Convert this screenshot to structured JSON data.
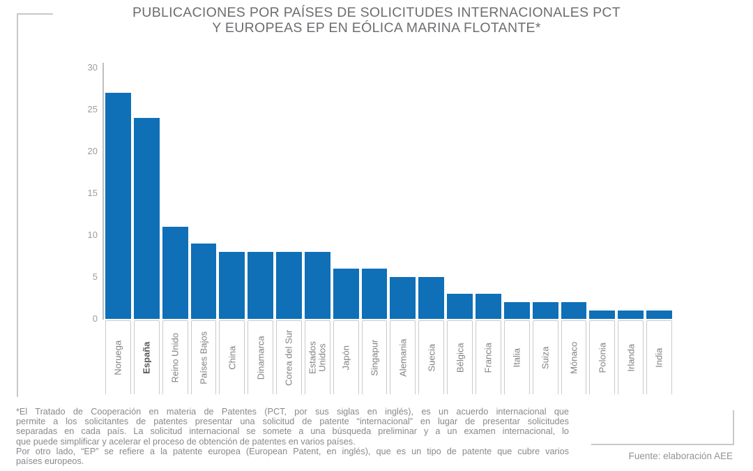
{
  "title": {
    "line1": "PUBLICACIONES POR PAÍSES DE SOLICITUDES INTERNACIONALES PCT",
    "line2": "Y EUROPEAS EP EN EÓLICA MARINA FLOTANTE*"
  },
  "chart_data": {
    "type": "bar",
    "title": "PUBLICACIONES POR PAÍSES DE SOLICITUDES INTERNACIONALES PCT Y EUROPEAS EP EN EÓLICA MARINA FLOTANTE*",
    "categories": [
      "Noruega",
      "España",
      "Reino Unido",
      "Países Bajos",
      "China",
      "Dinamarca",
      "Corea del Sur",
      "Estados\nUnidos",
      "Japón",
      "Singapur",
      "Alemania",
      "Suecia",
      "Bélgica",
      "Francia",
      "Italia",
      "Suiza",
      "Mónaco",
      "Polonia",
      "Irlanda",
      "India"
    ],
    "values": [
      27,
      24,
      11,
      9,
      8,
      8,
      8,
      8,
      6,
      6,
      5,
      5,
      3,
      3,
      2,
      2,
      2,
      1,
      1,
      1
    ],
    "ylim": [
      0,
      30
    ],
    "yticks": [
      0,
      5,
      10,
      15,
      20,
      25,
      30
    ],
    "grid": false,
    "legend_position": "none",
    "bar_color": "#0f6fb7",
    "bold_category": "España"
  },
  "footnote": {
    "lines": [
      "*El Tratado de Cooperación en materia de Patentes (PCT, por sus siglas en inglés), es un acuerdo internacional que",
      "permite a los solicitantes de patentes presentar una solicitud de patente “internacional” en lugar de presentar solicitudes",
      "separadas en cada país. La solicitud internacional se somete a una búsqueda preliminar y a un examen internacional, lo",
      "que puede simplificar y acelerar el proceso de obtención de patentes en varios países.",
      "Por otro lado, “EP” se refiere a la patente europea (European Patent, en inglés), que es un tipo de patente que cubre varios",
      "países europeos."
    ]
  },
  "source": {
    "text": "Fuente: elaboración AEE"
  }
}
